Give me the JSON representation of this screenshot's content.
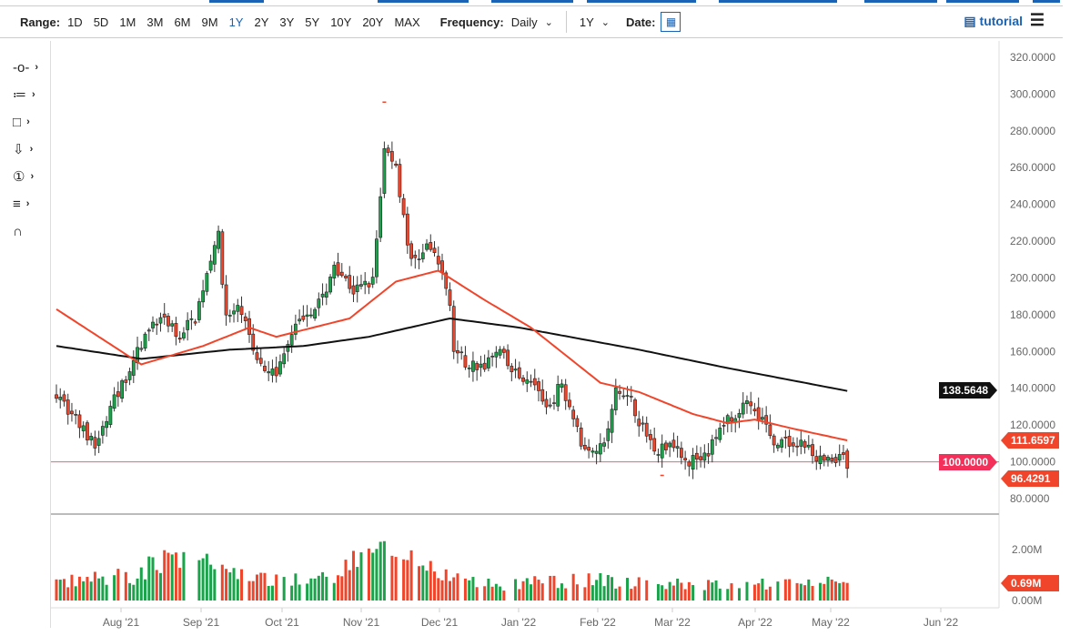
{
  "toolbar": {
    "range_label": "Range:",
    "ranges": [
      "1D",
      "5D",
      "1M",
      "3M",
      "6M",
      "9M",
      "1Y",
      "2Y",
      "3Y",
      "5Y",
      "10Y",
      "20Y",
      "MAX"
    ],
    "active_range": "1Y",
    "frequency_label": "Frequency:",
    "frequency_value": "Daily",
    "period_value": "1Y",
    "date_label": "Date:",
    "tutorial_label": "tutorial"
  },
  "tools": [
    "line-tool",
    "fib-tool",
    "rectangle-tool",
    "arrow-down-tool",
    "annotation-tool",
    "measure-tool",
    "magnet-tool"
  ],
  "colors": {
    "up": "#1aa34a",
    "down": "#f0452b",
    "ma50": "#f0452b",
    "ma200": "#111111",
    "hline": "#f06070"
  },
  "chart_data": {
    "type": "candlestick",
    "frequency": "Daily",
    "ylim": [
      80,
      320
    ],
    "yticks": [
      "320.0000",
      "300.0000",
      "280.0000",
      "260.0000",
      "240.0000",
      "220.0000",
      "200.0000",
      "180.0000",
      "160.0000",
      "140.0000",
      "120.0000",
      "100.0000",
      "80.0000"
    ],
    "xticks": [
      "Aug '21",
      "Sep '21",
      "Oct '21",
      "Nov '21",
      "Dec '21",
      "Jan '22",
      "Feb '22",
      "Mar '22",
      "Apr '22",
      "May '22",
      "Jun '22"
    ],
    "close_waypoints": [
      [
        0,
        138
      ],
      [
        10,
        108
      ],
      [
        16,
        138
      ],
      [
        23,
        168
      ],
      [
        28,
        180
      ],
      [
        31,
        168
      ],
      [
        36,
        178
      ],
      [
        41,
        220
      ],
      [
        42,
        222
      ],
      [
        44,
        178
      ],
      [
        48,
        183
      ],
      [
        51,
        158
      ],
      [
        57,
        148
      ],
      [
        61,
        168
      ],
      [
        64,
        180
      ],
      [
        69,
        188
      ],
      [
        72,
        208
      ],
      [
        77,
        193
      ],
      [
        82,
        198
      ],
      [
        85,
        270
      ],
      [
        88,
        262
      ],
      [
        90,
        232
      ],
      [
        92,
        208
      ],
      [
        96,
        218
      ],
      [
        99,
        208
      ],
      [
        102,
        188
      ],
      [
        103,
        163
      ],
      [
        106,
        153
      ],
      [
        111,
        153
      ],
      [
        115,
        160
      ],
      [
        118,
        148
      ],
      [
        123,
        146
      ],
      [
        127,
        128
      ],
      [
        131,
        143
      ],
      [
        134,
        124
      ],
      [
        136,
        109
      ],
      [
        142,
        109
      ],
      [
        145,
        138
      ],
      [
        149,
        133
      ],
      [
        152,
        118
      ],
      [
        156,
        106
      ],
      [
        160,
        111
      ],
      [
        164,
        100
      ],
      [
        169,
        106
      ],
      [
        174,
        124
      ],
      [
        179,
        131
      ],
      [
        183,
        124
      ],
      [
        186,
        109
      ],
      [
        191,
        111
      ],
      [
        194,
        109
      ],
      [
        198,
        101
      ],
      [
        203,
        101
      ],
      [
        204,
        106
      ],
      [
        205,
        96.43
      ]
    ],
    "ma50_waypoints": [
      [
        0,
        183
      ],
      [
        22,
        153
      ],
      [
        38,
        163
      ],
      [
        50,
        173
      ],
      [
        57,
        168
      ],
      [
        76,
        178
      ],
      [
        88,
        198
      ],
      [
        99,
        204
      ],
      [
        111,
        188
      ],
      [
        123,
        173
      ],
      [
        132,
        158
      ],
      [
        141,
        143
      ],
      [
        151,
        138
      ],
      [
        165,
        126
      ],
      [
        174,
        121
      ],
      [
        181,
        123
      ],
      [
        191,
        118
      ],
      [
        205,
        111.66
      ]
    ],
    "ma200_waypoints": [
      [
        0,
        163
      ],
      [
        22,
        156
      ],
      [
        45,
        161
      ],
      [
        64,
        163
      ],
      [
        81,
        168
      ],
      [
        102,
        178
      ],
      [
        120,
        173
      ],
      [
        151,
        161
      ],
      [
        174,
        151
      ],
      [
        205,
        138.56
      ]
    ],
    "volume_waypoints_millions": [
      [
        0,
        0.7
      ],
      [
        20,
        1.0
      ],
      [
        30,
        1.6
      ],
      [
        40,
        1.3
      ],
      [
        50,
        0.8
      ],
      [
        70,
        0.9
      ],
      [
        85,
        2.2
      ],
      [
        95,
        1.2
      ],
      [
        110,
        0.6
      ],
      [
        140,
        0.8
      ],
      [
        170,
        0.6
      ],
      [
        205,
        0.69
      ]
    ],
    "horizontal_line": {
      "value": 100,
      "label": "100.0000"
    },
    "last_price": {
      "label": "96.4291"
    },
    "ma50_last": {
      "label": "111.6597"
    },
    "ma200_last": {
      "label": "138.5648"
    },
    "volume_axis": [
      "2.00M",
      "0.00M"
    ],
    "volume_last": {
      "label": "0.69M"
    }
  }
}
